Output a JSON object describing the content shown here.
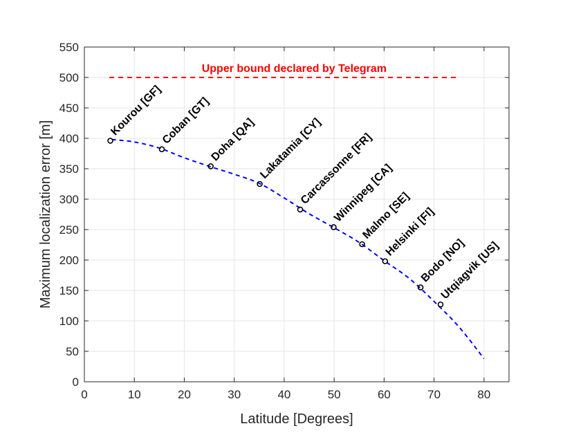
{
  "chart_data": {
    "type": "scatter",
    "title": "",
    "xlabel": "Latitude [Degrees]",
    "ylabel": "Maximum localization error [m]",
    "xlim": [
      0,
      85
    ],
    "ylim": [
      0,
      550
    ],
    "xticks": [
      0,
      10,
      20,
      30,
      40,
      50,
      60,
      70,
      80
    ],
    "yticks": [
      0,
      50,
      100,
      150,
      200,
      250,
      300,
      350,
      400,
      450,
      500,
      550
    ],
    "grid": true,
    "points": [
      {
        "label": "Kourou [GF]",
        "x": 5.2,
        "y": 396
      },
      {
        "label": "Coban [GT]",
        "x": 15.5,
        "y": 382
      },
      {
        "label": "Doha [QA]",
        "x": 25.3,
        "y": 354
      },
      {
        "label": "Lakatamia [CY]",
        "x": 35.1,
        "y": 325
      },
      {
        "label": "Carcassonne [FR]",
        "x": 43.2,
        "y": 283
      },
      {
        "label": "Winnipeg [CA]",
        "x": 49.9,
        "y": 254
      },
      {
        "label": "Malmo [SE]",
        "x": 55.6,
        "y": 226
      },
      {
        "label": "Helsinki [FI]",
        "x": 60.2,
        "y": 198
      },
      {
        "label": "Bodo [NO]",
        "x": 67.3,
        "y": 155
      },
      {
        "label": "Utqiagvik [US]",
        "x": 71.3,
        "y": 127
      }
    ],
    "fit_curve": {
      "style": "dashed",
      "color": "#0000ff",
      "x": [
        5.5,
        10,
        15,
        20,
        25,
        30,
        35,
        40,
        45,
        50,
        55,
        60,
        65,
        70,
        75,
        80
      ],
      "y": [
        398,
        394,
        384,
        368,
        354,
        341,
        326,
        302,
        276,
        253,
        229,
        199,
        170,
        132,
        90,
        38
      ]
    },
    "bound_line": {
      "label": "Upper bound declared by Telegram",
      "y": 500,
      "x_start": 5,
      "x_end": 75,
      "color": "#ff0000"
    },
    "colors": {
      "marker": "#0000ff",
      "axis": "#262626",
      "grid": "#e6e6e6"
    }
  }
}
